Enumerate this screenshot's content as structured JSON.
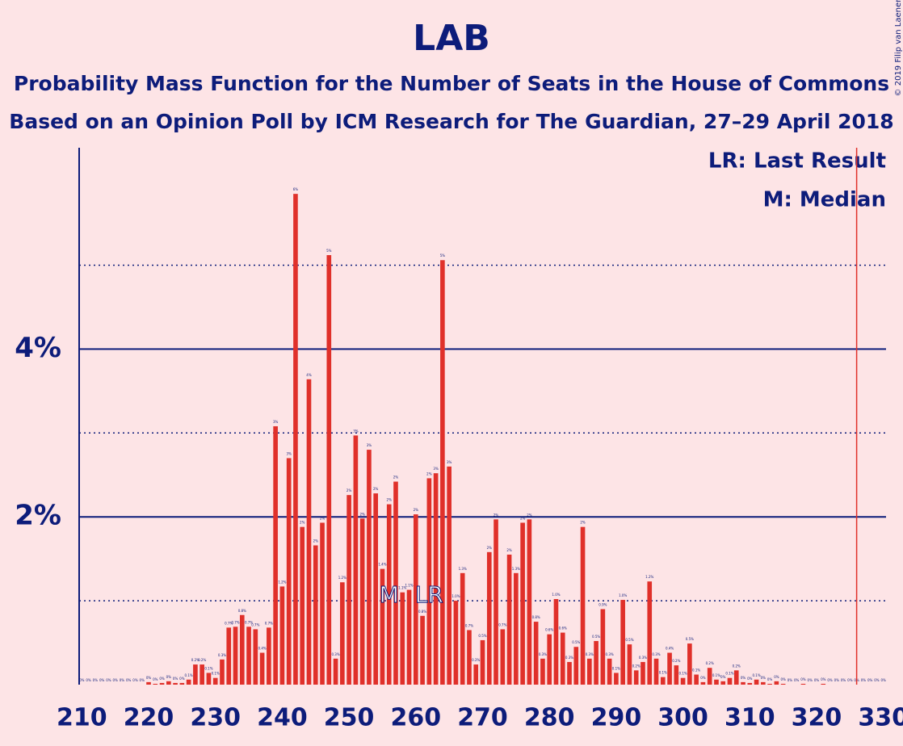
{
  "chart_data": {
    "type": "bar",
    "title": "LAB",
    "subtitle": "Probability Mass Function for the Number of Seats in the House of Commons",
    "subtitle2": "Based on an Opinion Poll by ICM Research for The Guardian, 27–29 April 2018",
    "copyright": "© 2019 Filip van Laenen",
    "legend": [
      "LR: Last Result",
      "M: Median"
    ],
    "color": "#e0302a",
    "x": [
      210,
      211,
      212,
      213,
      214,
      215,
      216,
      217,
      218,
      219,
      220,
      221,
      222,
      223,
      224,
      225,
      226,
      227,
      228,
      229,
      230,
      231,
      232,
      233,
      234,
      235,
      236,
      237,
      238,
      239,
      240,
      241,
      242,
      243,
      244,
      245,
      246,
      247,
      248,
      249,
      250,
      251,
      252,
      253,
      254,
      255,
      256,
      257,
      258,
      259,
      260,
      261,
      262,
      263,
      264,
      265,
      266,
      267,
      268,
      269,
      270,
      271,
      272,
      273,
      274,
      275,
      276,
      277,
      278,
      279,
      280,
      281,
      282,
      283,
      284,
      285,
      286,
      287,
      288,
      289,
      290,
      291,
      292,
      293,
      294,
      295,
      296,
      297,
      298,
      299,
      300,
      301,
      302,
      303,
      304,
      305,
      306,
      307,
      308,
      309,
      310,
      311,
      312,
      313,
      314,
      315,
      316,
      317,
      318,
      319,
      320,
      321,
      322,
      323,
      324,
      325,
      326,
      327,
      328,
      329,
      330
    ],
    "values": [
      0,
      0,
      0,
      0,
      0,
      0,
      0,
      0,
      0,
      0,
      0.03,
      0.01,
      0.02,
      0.04,
      0.02,
      0.02,
      0.06,
      0.24,
      0.24,
      0.14,
      0.08,
      0.3,
      0.68,
      0.69,
      0.83,
      0.69,
      0.66,
      0.38,
      0.68,
      3.08,
      1.17,
      2.7,
      5.85,
      1.88,
      3.64,
      1.66,
      1.93,
      5.12,
      0.31,
      1.22,
      2.26,
      2.97,
      1.98,
      2.8,
      2.28,
      1.38,
      2.15,
      2.42,
      1.1,
      1.13,
      2.03,
      0.82,
      2.46,
      2.52,
      5.06,
      2.6,
      1.0,
      1.33,
      0.65,
      0.24,
      0.53,
      1.58,
      1.97,
      0.66,
      1.55,
      1.33,
      1.93,
      1.97,
      0.75,
      0.31,
      0.6,
      1.02,
      0.62,
      0.27,
      0.45,
      1.88,
      0.31,
      0.52,
      0.9,
      0.31,
      0.14,
      1.01,
      0.48,
      0.17,
      0.27,
      1.23,
      0.31,
      0.09,
      0.38,
      0.23,
      0.08,
      0.49,
      0.12,
      0.03,
      0.2,
      0.06,
      0.04,
      0.08,
      0.17,
      0.03,
      0.02,
      0.06,
      0.03,
      0.01,
      0.04,
      0.01,
      0,
      0,
      0.01,
      0,
      0,
      0.01,
      0,
      0,
      0,
      0,
      0,
      0,
      0,
      0,
      0
    ],
    "value_labels": [
      "0%",
      "0%",
      "0%",
      "0%",
      "0%",
      "0%",
      "0%",
      "0%",
      "0%",
      "0%",
      "0%",
      "0%",
      "0%",
      "0%",
      "0%",
      "0%",
      "0.1%",
      "0.2%",
      "0.2%",
      "0.1%",
      "0.1%",
      "0.3%",
      "0.7%",
      "0.7%",
      "0.8%",
      "0.7%",
      "0.7%",
      "0.4%",
      "0.7%",
      "3%",
      "1.2%",
      "3%",
      "6%",
      "2%",
      "4%",
      "2%",
      "2%",
      "5%",
      "0.3%",
      "1.2%",
      "2%",
      "3%",
      "2%",
      "3%",
      "2%",
      "1.4%",
      "2%",
      "2%",
      "1.1%",
      "1.1%",
      "2%",
      "0.8%",
      "2%",
      "3%",
      "5%",
      "3%",
      "1.0%",
      "1.3%",
      "0.7%",
      "0.2%",
      "0.5%",
      "2%",
      "2%",
      "0.7%",
      "2%",
      "1.3%",
      "2%",
      "2%",
      "0.8%",
      "0.3%",
      "0.6%",
      "1.0%",
      "0.6%",
      "0.3%",
      "0.5%",
      "2%",
      "0.3%",
      "0.5%",
      "0.9%",
      "0.3%",
      "0.1%",
      "1.0%",
      "0.5%",
      "0.2%",
      "0.3%",
      "1.2%",
      "0.3%",
      "0.1%",
      "0.4%",
      "0.2%",
      "0.1%",
      "0.5%",
      "0.1%",
      "0%",
      "0.2%",
      "0.1%",
      "0%",
      "0.1%",
      "0.2%",
      "0%",
      "0%",
      "0.1%",
      "0%",
      "0%",
      "0%",
      "0%",
      "0%",
      "0%",
      "0%",
      "0%",
      "0%",
      "0%",
      "0%",
      "0%",
      "0%",
      "0%",
      "0%",
      "0%",
      "0%",
      "0%",
      "0%"
    ],
    "xlim": [
      209.6,
      330.4
    ],
    "xticks": [
      210,
      220,
      230,
      240,
      250,
      260,
      270,
      280,
      290,
      300,
      310,
      320,
      330
    ],
    "ylim": [
      0,
      6.4
    ],
    "yticks": [
      {
        "value": 2,
        "label": "2%"
      },
      {
        "value": 4,
        "label": "4%"
      }
    ],
    "minor_yticks": [
      1,
      3,
      5
    ],
    "annotations": [
      {
        "x": 256,
        "label": "M"
      },
      {
        "x": 262,
        "label": "LR"
      }
    ],
    "vline": {
      "x": 326,
      "color": "#e0302a"
    }
  }
}
